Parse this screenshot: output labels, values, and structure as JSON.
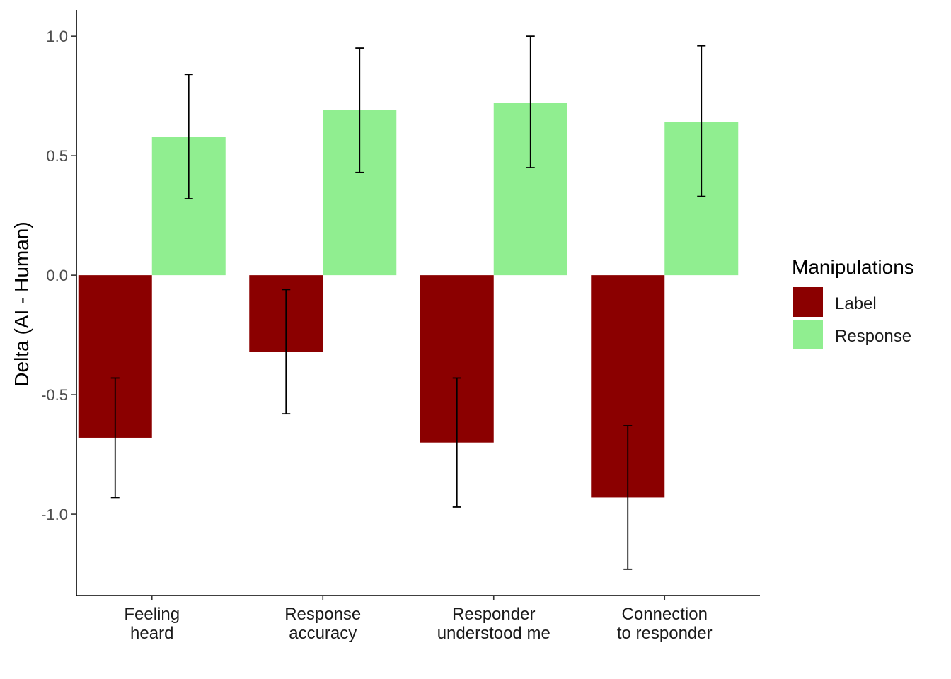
{
  "chart_data": {
    "type": "bar",
    "categories": [
      [
        "Feeling",
        "heard"
      ],
      [
        "Response",
        "accuracy"
      ],
      [
        "Responder",
        "understood me"
      ],
      [
        "Connection",
        "to responder"
      ]
    ],
    "series": [
      {
        "name": "Label",
        "color": "#8b0000",
        "values": [
          -0.68,
          -0.32,
          -0.7,
          -0.93
        ],
        "error_low": [
          -0.93,
          -0.58,
          -0.97,
          -1.23
        ],
        "error_high": [
          -0.43,
          -0.06,
          -0.43,
          -0.63
        ]
      },
      {
        "name": "Response",
        "color": "#90ee90",
        "values": [
          0.58,
          0.69,
          0.72,
          0.64
        ],
        "error_low": [
          0.32,
          0.43,
          0.45,
          0.33
        ],
        "error_high": [
          0.84,
          0.95,
          1.0,
          0.96
        ]
      }
    ],
    "ylabel": "Delta (AI - Human)",
    "xlabel": "",
    "ylim": [
      -1.34,
      1.11
    ],
    "yticks": [
      1.0,
      0.5,
      0.0,
      -0.5,
      -1.0
    ],
    "ytick_labels": [
      "1.0",
      "0.5",
      "0.0",
      "-0.5",
      "-1.0"
    ],
    "legend": {
      "title": "Manipulations",
      "placement": "right"
    },
    "grid": false,
    "error_bars": true
  }
}
